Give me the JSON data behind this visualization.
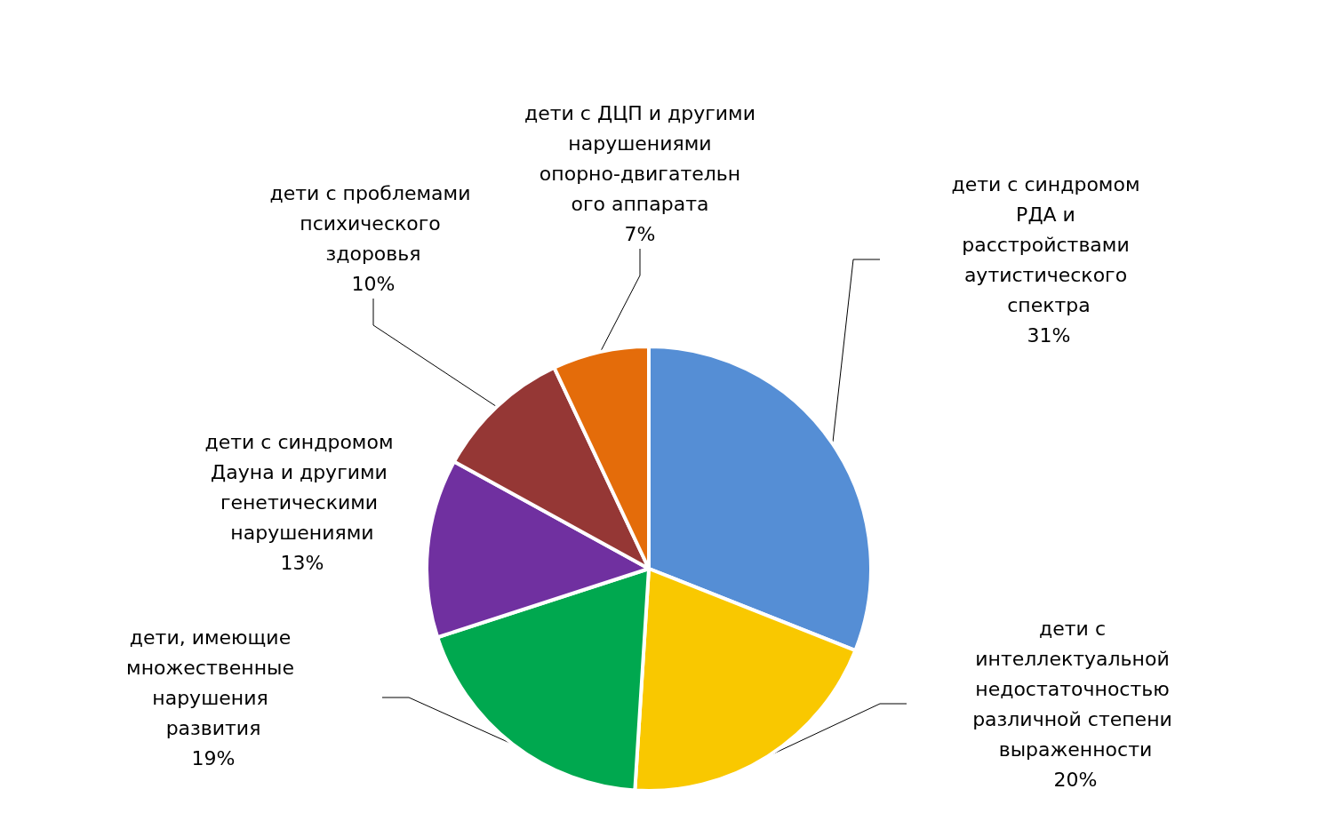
{
  "chart_data": {
    "type": "pie",
    "categories": [
      "дети с синдромом РДА и расстройствами аутистического спектра",
      "дети с интеллектуальной недостаточностью различной степени выраженности",
      "дети, имеющие множественные нарушения развития",
      "дети с синдромом Дауна и другими генетическими нарушениями",
      "дети с проблемами психического здоровья",
      "дети с ДЦП и другими нарушениями опорно-двигательного аппарата"
    ],
    "values": [
      31,
      20,
      19,
      13,
      10,
      7
    ],
    "colors": [
      "#558ed5",
      "#f9c800",
      "#00a84f",
      "#7030a0",
      "#953735",
      "#e46c0a"
    ],
    "value_labels": [
      "31%",
      "20%",
      "19%",
      "13%",
      "10%",
      "7%"
    ]
  }
}
